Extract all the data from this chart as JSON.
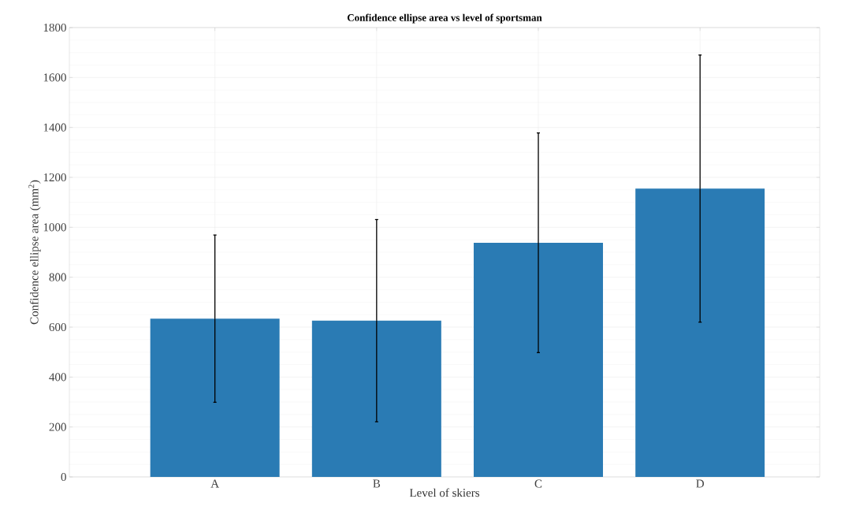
{
  "chart_data": {
    "type": "bar",
    "title": "**Confidence ellipse area vs level of sportsman**",
    "xlabel": "Level of skiers",
    "ylabel": "Confidence ellipse area (mm$^{2}$)",
    "categories": [
      "A",
      "B",
      "C",
      "D"
    ],
    "values": [
      634,
      626,
      938,
      1155
    ],
    "errors": [
      335,
      405,
      440,
      535
    ],
    "color": "#2a7bb4",
    "ylim": [
      0,
      1800
    ],
    "yticks": [
      0,
      200,
      400,
      600,
      800,
      1000,
      1200,
      1400,
      1600,
      1800
    ],
    "grid": true
  }
}
